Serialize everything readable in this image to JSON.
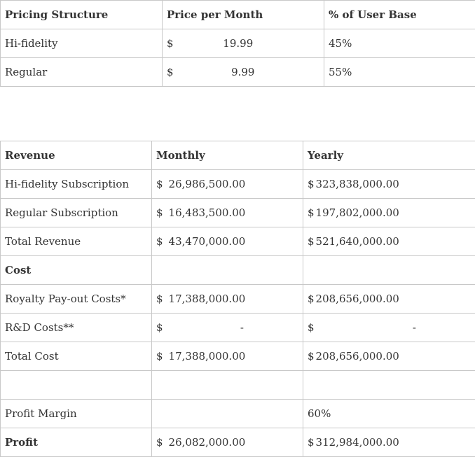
{
  "pricing": {
    "headers": [
      "Pricing Structure",
      "Price per Month",
      "% of User Base"
    ],
    "rows": [
      {
        "label": "Hi-fidelity",
        "currency": "$",
        "price": "19.99",
        "share": "45%"
      },
      {
        "label": "Regular",
        "currency": "$",
        "price": "9.99",
        "share": "55%"
      }
    ]
  },
  "financials": {
    "headers": [
      "Revenue",
      "Monthly",
      "Yearly"
    ],
    "hifi_sub": {
      "label": "Hi-fidelity Subscription",
      "m_cur": "$",
      "monthly": "26,986,500.00",
      "y_cur": "$",
      "yearly": "323,838,000.00"
    },
    "regular_sub": {
      "label": "Regular Subscription",
      "m_cur": "$",
      "monthly": "16,483,500.00",
      "y_cur": "$",
      "yearly": "197,802,000.00"
    },
    "total_revenue": {
      "label": "Total Revenue",
      "m_cur": "$",
      "monthly": "43,470,000.00",
      "y_cur": "$",
      "yearly": "521,640,000.00"
    },
    "cost_header": {
      "label": "Cost"
    },
    "royalty": {
      "label": "Royalty Pay-out Costs*",
      "m_cur": "$",
      "monthly": "17,388,000.00",
      "y_cur": "$",
      "yearly": "208,656,000.00"
    },
    "rnd": {
      "label": "R&D Costs**",
      "m_cur": "$",
      "monthly": "-",
      "y_cur": "$",
      "yearly": "-"
    },
    "total_cost": {
      "label": "Total Cost",
      "m_cur": "$",
      "monthly": "17,388,000.00",
      "y_cur": "$",
      "yearly": "208,656,000.00"
    },
    "profit_margin": {
      "label": "Profit Margin",
      "yearly": "60%"
    },
    "profit": {
      "label": "Profit",
      "m_cur": "$",
      "monthly": "26,082,000.00",
      "y_cur": "$",
      "yearly": "312,984,000.00"
    }
  }
}
